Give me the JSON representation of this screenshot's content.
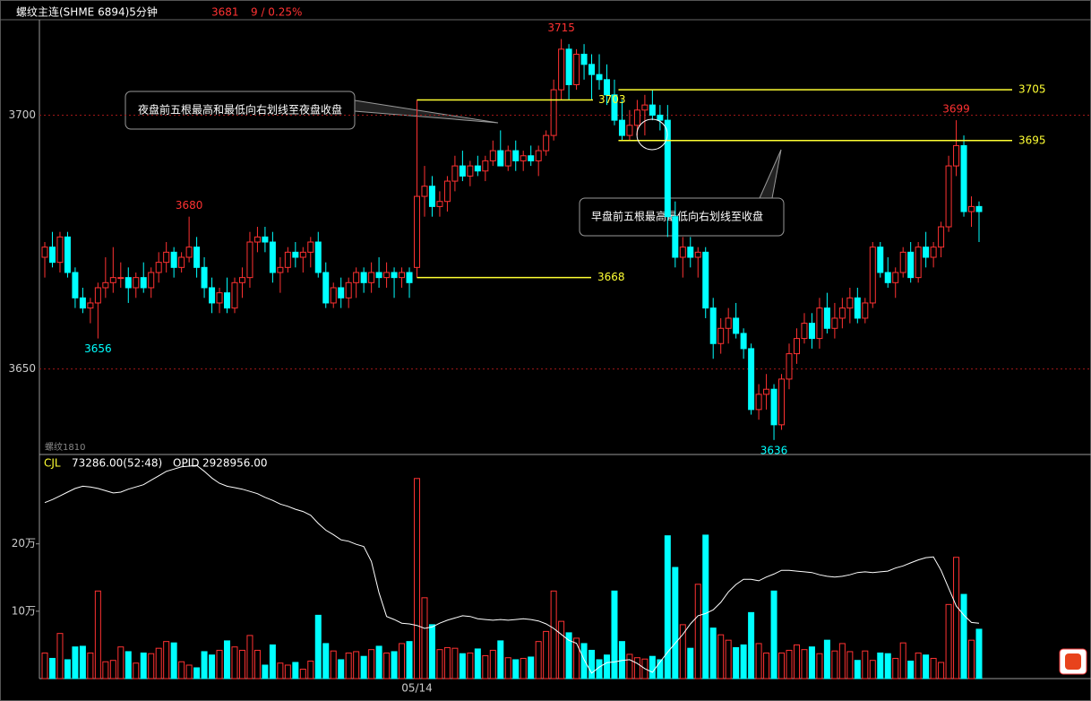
{
  "chart_data": [
    {
      "type": "candlestick",
      "title": "螺纹主连(SHME 6894)5分钟",
      "change": "9 / 0.25%",
      "contract": "螺纹1810",
      "up_color": "#ff3232",
      "down_color": "#00ffff",
      "grid": true,
      "ylim": [
        3633.5,
        3718.8
      ],
      "yticks": [
        3650,
        3700
      ],
      "annotations": [
        "夜盘前五根最高和最低向右划线至夜盘收盘",
        "早盘前五根最高最低向右划线至收盘"
      ],
      "ohlc": [
        [
          3672,
          3675,
          3668,
          3674
        ],
        [
          3674,
          3677,
          3670,
          3671
        ],
        [
          3671,
          3677,
          3669,
          3676
        ],
        [
          3676,
          3677,
          3668,
          3669
        ],
        [
          3669,
          3670,
          3662,
          3664
        ],
        [
          3664,
          3666,
          3661,
          3662
        ],
        [
          3662,
          3664,
          3659,
          3663
        ],
        [
          3663,
          3667,
          3656,
          3666
        ],
        [
          3666,
          3672,
          3664,
          3667
        ],
        [
          3667,
          3674,
          3665,
          3668
        ],
        [
          3668,
          3671,
          3666,
          3668
        ],
        [
          3668,
          3670,
          3663,
          3666
        ],
        [
          3666,
          3669,
          3664,
          3668
        ],
        [
          3668,
          3671,
          3665,
          3666
        ],
        [
          3666,
          3670,
          3664,
          3669
        ],
        [
          3669,
          3673,
          3667,
          3671
        ],
        [
          3671,
          3675,
          3669,
          3673
        ],
        [
          3673,
          3674,
          3668,
          3670
        ],
        [
          3670,
          3673,
          3669,
          3672
        ],
        [
          3672,
          3680,
          3671,
          3674
        ],
        [
          3674,
          3676,
          3668,
          3670
        ],
        [
          3670,
          3672,
          3664,
          3666
        ],
        [
          3666,
          3668,
          3661,
          3663
        ],
        [
          3663,
          3666,
          3661,
          3665
        ],
        [
          3665,
          3668,
          3661,
          3662
        ],
        [
          3662,
          3668,
          3661,
          3667
        ],
        [
          3667,
          3670,
          3664,
          3668
        ],
        [
          3668,
          3677,
          3666,
          3675
        ],
        [
          3675,
          3678,
          3673,
          3676
        ],
        [
          3676,
          3678,
          3673,
          3675
        ],
        [
          3675,
          3677,
          3667,
          3669
        ],
        [
          3669,
          3672,
          3665,
          3670
        ],
        [
          3670,
          3674,
          3669,
          3673
        ],
        [
          3673,
          3675,
          3670,
          3672
        ],
        [
          3672,
          3674,
          3669,
          3673
        ],
        [
          3673,
          3676,
          3670,
          3675
        ],
        [
          3675,
          3677,
          3668,
          3669
        ],
        [
          3669,
          3671,
          3662,
          3663
        ],
        [
          3663,
          3667,
          3662,
          3666
        ],
        [
          3666,
          3668,
          3662,
          3664
        ],
        [
          3664,
          3668,
          3662,
          3667
        ],
        [
          3667,
          3670,
          3664,
          3669
        ],
        [
          3669,
          3670,
          3665,
          3667
        ],
        [
          3667,
          3671,
          3665,
          3669
        ],
        [
          3669,
          3672,
          3666,
          3668
        ],
        [
          3668,
          3671,
          3666,
          3669
        ],
        [
          3669,
          3670,
          3664,
          3668
        ],
        [
          3668,
          3670,
          3666,
          3669
        ],
        [
          3669,
          3670,
          3664,
          3667
        ],
        [
          3670,
          3703,
          3668,
          3684
        ],
        [
          3684,
          3690,
          3680,
          3686
        ],
        [
          3686,
          3688,
          3680,
          3682
        ],
        [
          3682,
          3685,
          3680,
          3683
        ],
        [
          3683,
          3688,
          3681,
          3687
        ],
        [
          3687,
          3692,
          3685,
          3690
        ],
        [
          3690,
          3693,
          3687,
          3688
        ],
        [
          3688,
          3691,
          3686,
          3690
        ],
        [
          3690,
          3692,
          3688,
          3689
        ],
        [
          3689,
          3692,
          3687,
          3691
        ],
        [
          3691,
          3695,
          3690,
          3693
        ],
        [
          3693,
          3697,
          3690,
          3690
        ],
        [
          3690,
          3694,
          3689,
          3693
        ],
        [
          3693,
          3695,
          3689,
          3691
        ],
        [
          3691,
          3693,
          3689,
          3692
        ],
        [
          3692,
          3694,
          3690,
          3691
        ],
        [
          3691,
          3694,
          3688,
          3693
        ],
        [
          3693,
          3697,
          3692,
          3696
        ],
        [
          3696,
          3707,
          3695,
          3705
        ],
        [
          3705,
          3715,
          3703,
          3713
        ],
        [
          3713,
          3714,
          3703,
          3706
        ],
        [
          3706,
          3713,
          3705,
          3712
        ],
        [
          3712,
          3714,
          3707,
          3710
        ],
        [
          3710,
          3712,
          3703,
          3708
        ],
        [
          3708,
          3712,
          3705,
          3707
        ],
        [
          3707,
          3710,
          3702,
          3704
        ],
        [
          3704,
          3707,
          3698,
          3699
        ],
        [
          3699,
          3703,
          3695,
          3696
        ],
        [
          3696,
          3701,
          3695,
          3698
        ],
        [
          3698,
          3703,
          3696,
          3701
        ],
        [
          3701,
          3704,
          3696,
          3702
        ],
        [
          3702,
          3705,
          3699,
          3700
        ],
        [
          3700,
          3702,
          3697,
          3699
        ],
        [
          3699,
          3702,
          3676,
          3680
        ],
        [
          3680,
          3683,
          3670,
          3672
        ],
        [
          3672,
          3676,
          3668,
          3674
        ],
        [
          3674,
          3676,
          3670,
          3672
        ],
        [
          3672,
          3674,
          3668,
          3673
        ],
        [
          3673,
          3674,
          3660,
          3662
        ],
        [
          3662,
          3664,
          3652,
          3655
        ],
        [
          3655,
          3660,
          3653,
          3658
        ],
        [
          3658,
          3662,
          3655,
          3660
        ],
        [
          3660,
          3663,
          3656,
          3657
        ],
        [
          3657,
          3658,
          3652,
          3654
        ],
        [
          3654,
          3655,
          3641,
          3642
        ],
        [
          3642,
          3647,
          3640,
          3645
        ],
        [
          3645,
          3649,
          3642,
          3646
        ],
        [
          3646,
          3647,
          3636,
          3639
        ],
        [
          3639,
          3649,
          3638,
          3648
        ],
        [
          3648,
          3655,
          3646,
          3653
        ],
        [
          3653,
          3658,
          3651,
          3656
        ],
        [
          3656,
          3661,
          3655,
          3659
        ],
        [
          3659,
          3661,
          3654,
          3656
        ],
        [
          3656,
          3664,
          3654,
          3662
        ],
        [
          3662,
          3665,
          3657,
          3658
        ],
        [
          3658,
          3663,
          3656,
          3660
        ],
        [
          3660,
          3664,
          3658,
          3662
        ],
        [
          3662,
          3666,
          3659,
          3664
        ],
        [
          3664,
          3666,
          3659,
          3660
        ],
        [
          3660,
          3664,
          3659,
          3663
        ],
        [
          3663,
          3675,
          3662,
          3674
        ],
        [
          3674,
          3675,
          3668,
          3669
        ],
        [
          3669,
          3672,
          3666,
          3667
        ],
        [
          3667,
          3670,
          3664,
          3669
        ],
        [
          3669,
          3674,
          3668,
          3673
        ],
        [
          3673,
          3675,
          3667,
          3668
        ],
        [
          3668,
          3675,
          3667,
          3674
        ],
        [
          3674,
          3677,
          3670,
          3672
        ],
        [
          3672,
          3675,
          3670,
          3674
        ],
        [
          3674,
          3679,
          3672,
          3678
        ],
        [
          3678,
          3692,
          3677,
          3690
        ],
        [
          3690,
          3699,
          3688,
          3694
        ],
        [
          3694,
          3696,
          3680,
          3681
        ],
        [
          3681,
          3684,
          3678,
          3682
        ],
        [
          3682,
          3683,
          3675,
          3681
        ]
      ]
    },
    {
      "type": "bar",
      "categories": [
        null,
        null,
        null,
        null,
        null,
        null,
        null,
        null,
        null,
        null,
        null,
        null,
        null,
        null,
        null,
        null,
        null,
        null,
        null,
        null,
        null,
        null,
        null,
        null,
        null,
        null,
        null,
        null,
        null,
        null,
        null,
        null,
        null,
        null,
        null,
        null,
        null,
        null,
        null,
        null,
        null,
        null,
        null,
        null,
        null,
        null,
        null,
        null,
        null,
        "05/14",
        null,
        null,
        null,
        null,
        null,
        null,
        null,
        null,
        null,
        null,
        null,
        null,
        null,
        null,
        null,
        null,
        null,
        null,
        null,
        null,
        null,
        null,
        null,
        null,
        null,
        null,
        null,
        null,
        null,
        null,
        null,
        null,
        null,
        null,
        null,
        null,
        null,
        null,
        null,
        null,
        null,
        null,
        null,
        null,
        null,
        null,
        null,
        null,
        null,
        null,
        null,
        null,
        null,
        null,
        null,
        null,
        null,
        null,
        null,
        null,
        null,
        null,
        null,
        null,
        null,
        null,
        null,
        null,
        null,
        null,
        null,
        null,
        null,
        null
      ],
      "ylim": [
        0,
        330000
      ],
      "yticks": [
        {
          "value": 100000,
          "label": "10万"
        },
        {
          "value": 200000,
          "label": "20万"
        }
      ],
      "y2lim": [
        2854600,
        3153200
      ],
      "legend_values": [
        "73286.00(52:48)",
        "2928956.00"
      ],
      "series": [
        {
          "name": "CJL",
          "values": [
            38000,
            30000,
            67000,
            28000,
            47000,
            48000,
            38000,
            130000,
            25000,
            27000,
            47000,
            40000,
            23000,
            38000,
            37000,
            45000,
            55000,
            53000,
            25000,
            20000,
            16000,
            40000,
            35000,
            42000,
            56000,
            47000,
            42000,
            64000,
            42000,
            20000,
            50000,
            23000,
            20000,
            24000,
            14000,
            26000,
            94000,
            52000,
            41000,
            28000,
            38000,
            40000,
            33000,
            43000,
            48000,
            38000,
            40000,
            52000,
            55000,
            297000,
            120000,
            80000,
            43000,
            46000,
            45000,
            37000,
            38000,
            44000,
            34000,
            42000,
            56000,
            31000,
            28000,
            30000,
            32000,
            55000,
            70000,
            130000,
            85000,
            68000,
            60000,
            52000,
            42000,
            28000,
            35000,
            130000,
            55000,
            36000,
            31000,
            29000,
            33000,
            28000,
            212000,
            165000,
            80000,
            45000,
            140000,
            213000,
            75000,
            65000,
            57000,
            46000,
            50000,
            98000,
            52000,
            38000,
            130000,
            38000,
            42000,
            50000,
            43000,
            47000,
            37000,
            57000,
            41000,
            52000,
            40000,
            27000,
            41000,
            27000,
            38000,
            37000,
            30000,
            53000,
            26000,
            38000,
            35000,
            30000,
            24000,
            110000,
            180000,
            125000,
            57000,
            73286
          ]
        },
        {
          "name": "OPID",
          "axis": "y2",
          "color": "#ffffff",
          "values": [
            3091000,
            3095000,
            3100000,
            3105000,
            3110000,
            3113000,
            3112000,
            3110000,
            3107000,
            3104000,
            3105000,
            3109000,
            3112000,
            3115000,
            3121000,
            3127000,
            3133000,
            3136000,
            3139000,
            3140000,
            3141000,
            3133000,
            3124000,
            3117000,
            3113000,
            3111000,
            3109000,
            3106000,
            3103000,
            3098000,
            3094000,
            3089000,
            3086000,
            3082000,
            3079000,
            3074000,
            3063000,
            3054000,
            3048000,
            3041000,
            3039000,
            3035000,
            3032000,
            3012000,
            2970000,
            2938000,
            2934000,
            2929000,
            2928000,
            2926000,
            2922000,
            2924000,
            2929000,
            2933000,
            2936000,
            2939000,
            2938000,
            2935000,
            2934000,
            2933000,
            2934000,
            2933000,
            2934000,
            2935000,
            2934000,
            2932000,
            2928000,
            2922000,
            2914000,
            2906000,
            2902000,
            2880000,
            2862000,
            2870000,
            2876000,
            2877000,
            2879000,
            2880000,
            2875000,
            2868000,
            2863000,
            2877000,
            2890000,
            2902000,
            2914000,
            2928000,
            2939000,
            2942000,
            2947000,
            2957000,
            2971000,
            2981000,
            2988000,
            2988000,
            2986000,
            2991000,
            2995000,
            3000000,
            3000000,
            2999000,
            2998000,
            2997000,
            2994000,
            2992000,
            2991000,
            2992000,
            2994000,
            2997000,
            2998000,
            2997000,
            2998000,
            2999000,
            3003000,
            3006000,
            3010000,
            3014000,
            3017000,
            3018000,
            3000000,
            2976000,
            2952000,
            2940000,
            2930000,
            2928956
          ]
        }
      ]
    }
  ]
}
